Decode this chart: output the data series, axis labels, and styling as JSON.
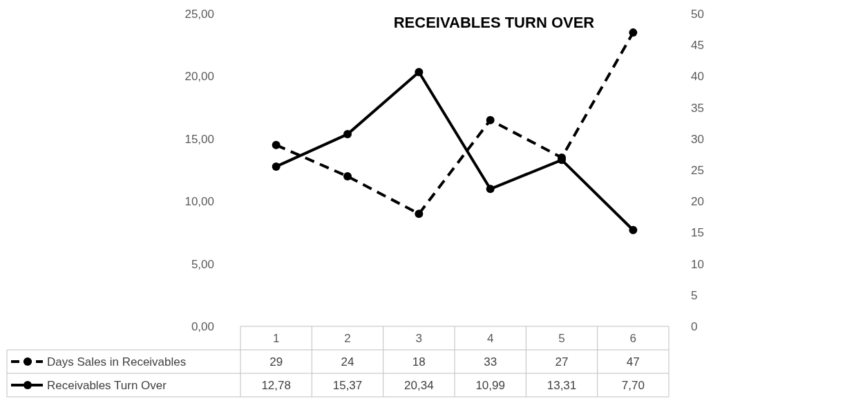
{
  "chart_data": {
    "type": "line",
    "title": "RECEIVABLES TURN OVER",
    "categories": [
      "1",
      "2",
      "3",
      "4",
      "5",
      "6"
    ],
    "series": [
      {
        "name": "Days Sales in Receivables",
        "color": "#000000",
        "axis": "y2",
        "line_style": "dashed",
        "values": [
          29,
          24,
          18,
          33,
          27,
          47
        ],
        "value_labels": [
          "29",
          "24",
          "18",
          "33",
          "27",
          "47"
        ]
      },
      {
        "name": "Receivables Turn Over",
        "color": "#000000",
        "line_style": "solid",
        "values": [
          12.78,
          15.37,
          20.34,
          10.99,
          13.31,
          7.7
        ],
        "value_labels": [
          "12,78",
          "15,37",
          "20,34",
          "10,99",
          "13,31",
          "7,70"
        ]
      }
    ],
    "ylim": [
      0,
      25
    ],
    "yticks": [
      {
        "value": 0,
        "label": "0,00"
      },
      {
        "value": 5,
        "label": "5,00"
      },
      {
        "value": 10,
        "label": "10,00"
      },
      {
        "value": 15,
        "label": "15,00"
      },
      {
        "value": 20,
        "label": "20,00"
      },
      {
        "value": 25,
        "label": "25,00"
      }
    ],
    "y2lim": [
      0,
      50
    ],
    "y2ticks": [
      0,
      5,
      10,
      15,
      20,
      25,
      30,
      35,
      40,
      45,
      50
    ],
    "marker": "circle",
    "grid": false,
    "legend": "bottom"
  }
}
